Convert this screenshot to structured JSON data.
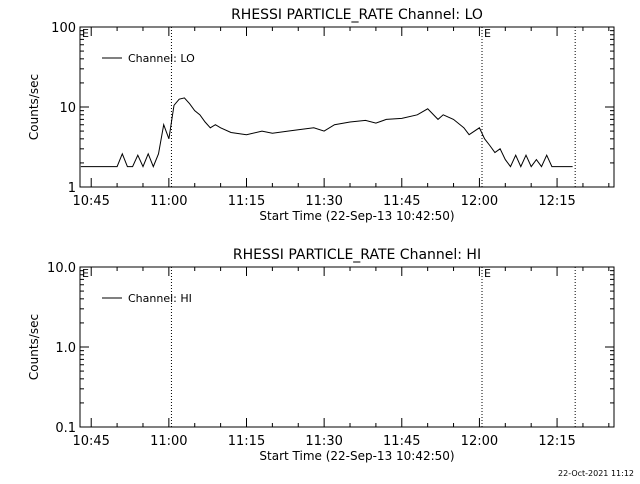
{
  "footer": {
    "timestamp": "22-Oct-2021 11:12"
  },
  "chart_data": [
    {
      "type": "line",
      "title": "RHESSI PARTICLE_RATE Channel: LO",
      "xlabel": "Start Time (22-Sep-13 10:42:50)",
      "ylabel": "Counts/sec",
      "y_scale": "log",
      "ylim": [
        1,
        100
      ],
      "y_ticks": [
        {
          "value": 1,
          "label": "1"
        },
        {
          "value": 10,
          "label": "10"
        },
        {
          "value": 100,
          "label": "100"
        }
      ],
      "x_ticks": [
        "10:45",
        "11:00",
        "11:15",
        "11:30",
        "11:45",
        "12:00",
        "12:15"
      ],
      "xlim": [
        "10:42:50",
        "12:26:00"
      ],
      "grid": false,
      "legend": {
        "placement": "top-left",
        "label": "Channel: LO"
      },
      "markers": [
        {
          "time": "11:00:30",
          "label": ""
        },
        {
          "time": "12:00:30",
          "label": "E"
        },
        {
          "time": "12:18:30",
          "label": ""
        }
      ],
      "corner_label": "E",
      "series": [
        {
          "name": "Channel: LO",
          "x": [
            "10:43",
            "10:50",
            "10:51",
            "10:52",
            "10:53",
            "10:54",
            "10:55",
            "10:56",
            "10:57",
            "10:58",
            "10:59",
            "11:00",
            "11:01",
            "11:02",
            "11:03",
            "11:04",
            "11:05",
            "11:06",
            "11:07",
            "11:08",
            "11:09",
            "11:10",
            "11:12",
            "11:15",
            "11:18",
            "11:20",
            "11:23",
            "11:25",
            "11:28",
            "11:30",
            "11:32",
            "11:35",
            "11:38",
            "11:40",
            "11:42",
            "11:45",
            "11:48",
            "11:50",
            "11:52",
            "11:53",
            "11:55",
            "11:57",
            "11:58",
            "12:00",
            "12:01",
            "12:02",
            "12:03",
            "12:04",
            "12:05",
            "12:06",
            "12:07",
            "12:08",
            "12:09",
            "12:10",
            "12:11",
            "12:12",
            "12:13",
            "12:14",
            "12:15",
            "12:17",
            "12:18"
          ],
          "values": [
            1.8,
            1.8,
            2.6,
            1.8,
            1.8,
            2.5,
            1.8,
            2.6,
            1.8,
            2.6,
            6.0,
            4.0,
            10.5,
            12.5,
            13.0,
            11.0,
            9.0,
            8.0,
            6.5,
            5.5,
            6.0,
            5.5,
            4.8,
            4.5,
            5.0,
            4.7,
            5.0,
            5.2,
            5.5,
            5.0,
            6.0,
            6.5,
            6.8,
            6.3,
            7.0,
            7.2,
            8.0,
            9.5,
            7.0,
            8.0,
            7.0,
            5.5,
            4.5,
            5.5,
            4.0,
            3.3,
            2.7,
            3.0,
            2.2,
            1.8,
            2.5,
            1.8,
            2.5,
            1.8,
            2.2,
            1.8,
            2.5,
            1.8,
            1.8,
            1.8,
            1.8
          ]
        }
      ]
    },
    {
      "type": "line",
      "title": "RHESSI PARTICLE_RATE Channel: HI",
      "xlabel": "Start Time (22-Sep-13 10:42:50)",
      "ylabel": "Counts/sec",
      "y_scale": "log",
      "ylim": [
        0.1,
        10
      ],
      "y_ticks": [
        {
          "value": 0.1,
          "label": "0.1"
        },
        {
          "value": 1,
          "label": "1.0"
        },
        {
          "value": 10,
          "label": "10.0"
        }
      ],
      "x_ticks": [
        "10:45",
        "11:00",
        "11:15",
        "11:30",
        "11:45",
        "12:00",
        "12:15"
      ],
      "xlim": [
        "10:42:50",
        "12:26:00"
      ],
      "grid": false,
      "legend": {
        "placement": "top-left",
        "label": "Channel: HI"
      },
      "markers": [
        {
          "time": "11:00:30",
          "label": ""
        },
        {
          "time": "12:00:30",
          "label": "E"
        },
        {
          "time": "12:18:30",
          "label": ""
        }
      ],
      "corner_label": "E",
      "series": [
        {
          "name": "Channel: HI",
          "x": [],
          "values": []
        }
      ]
    }
  ]
}
